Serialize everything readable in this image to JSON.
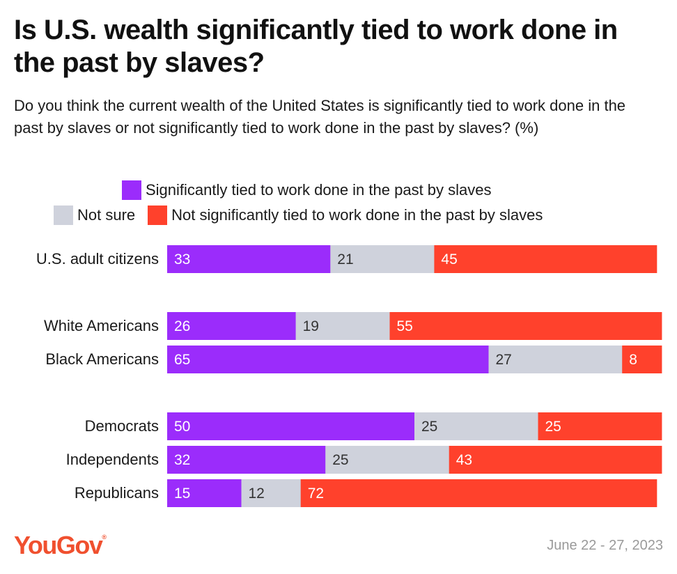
{
  "chart_data": {
    "type": "bar",
    "orientation": "horizontal",
    "stacked": true,
    "title": "Is U.S. wealth significantly tied to work done in the past by slaves?",
    "subtitle": "Do you think the current wealth of the United States is significantly tied to work done in the past by slaves or not significantly tied to work done in the past by slaves? (%)",
    "categories": [
      "U.S. adult citizens",
      "White Americans",
      "Black Americans",
      "Democrats",
      "Independents",
      "Republicans"
    ],
    "groups": [
      [
        0
      ],
      [
        1,
        2
      ],
      [
        3,
        4,
        5
      ]
    ],
    "series": [
      {
        "name": "Significantly tied to work done in the past by slaves",
        "color": "#9b2cfb",
        "label_color": "#ffffff",
        "values": [
          33,
          26,
          65,
          50,
          32,
          15
        ]
      },
      {
        "name": "Not sure",
        "color": "#cfd2dc",
        "label_color": "#333333",
        "values": [
          21,
          19,
          27,
          25,
          25,
          12
        ]
      },
      {
        "name": "Not significantly tied to work done in the past by slaves",
        "color": "#ff412c",
        "label_color": "#ffffff",
        "values": [
          45,
          55,
          8,
          25,
          43,
          72
        ]
      }
    ],
    "xlim": [
      0,
      100
    ],
    "legend": [
      "Significantly tied to work done in the past by slaves",
      "Not sure",
      "Not significantly tied to work done in the past by slaves"
    ],
    "legend_position": "top",
    "grid": false
  },
  "footer": {
    "brand": "YouGov",
    "date": "June 22 - 27, 2023"
  }
}
